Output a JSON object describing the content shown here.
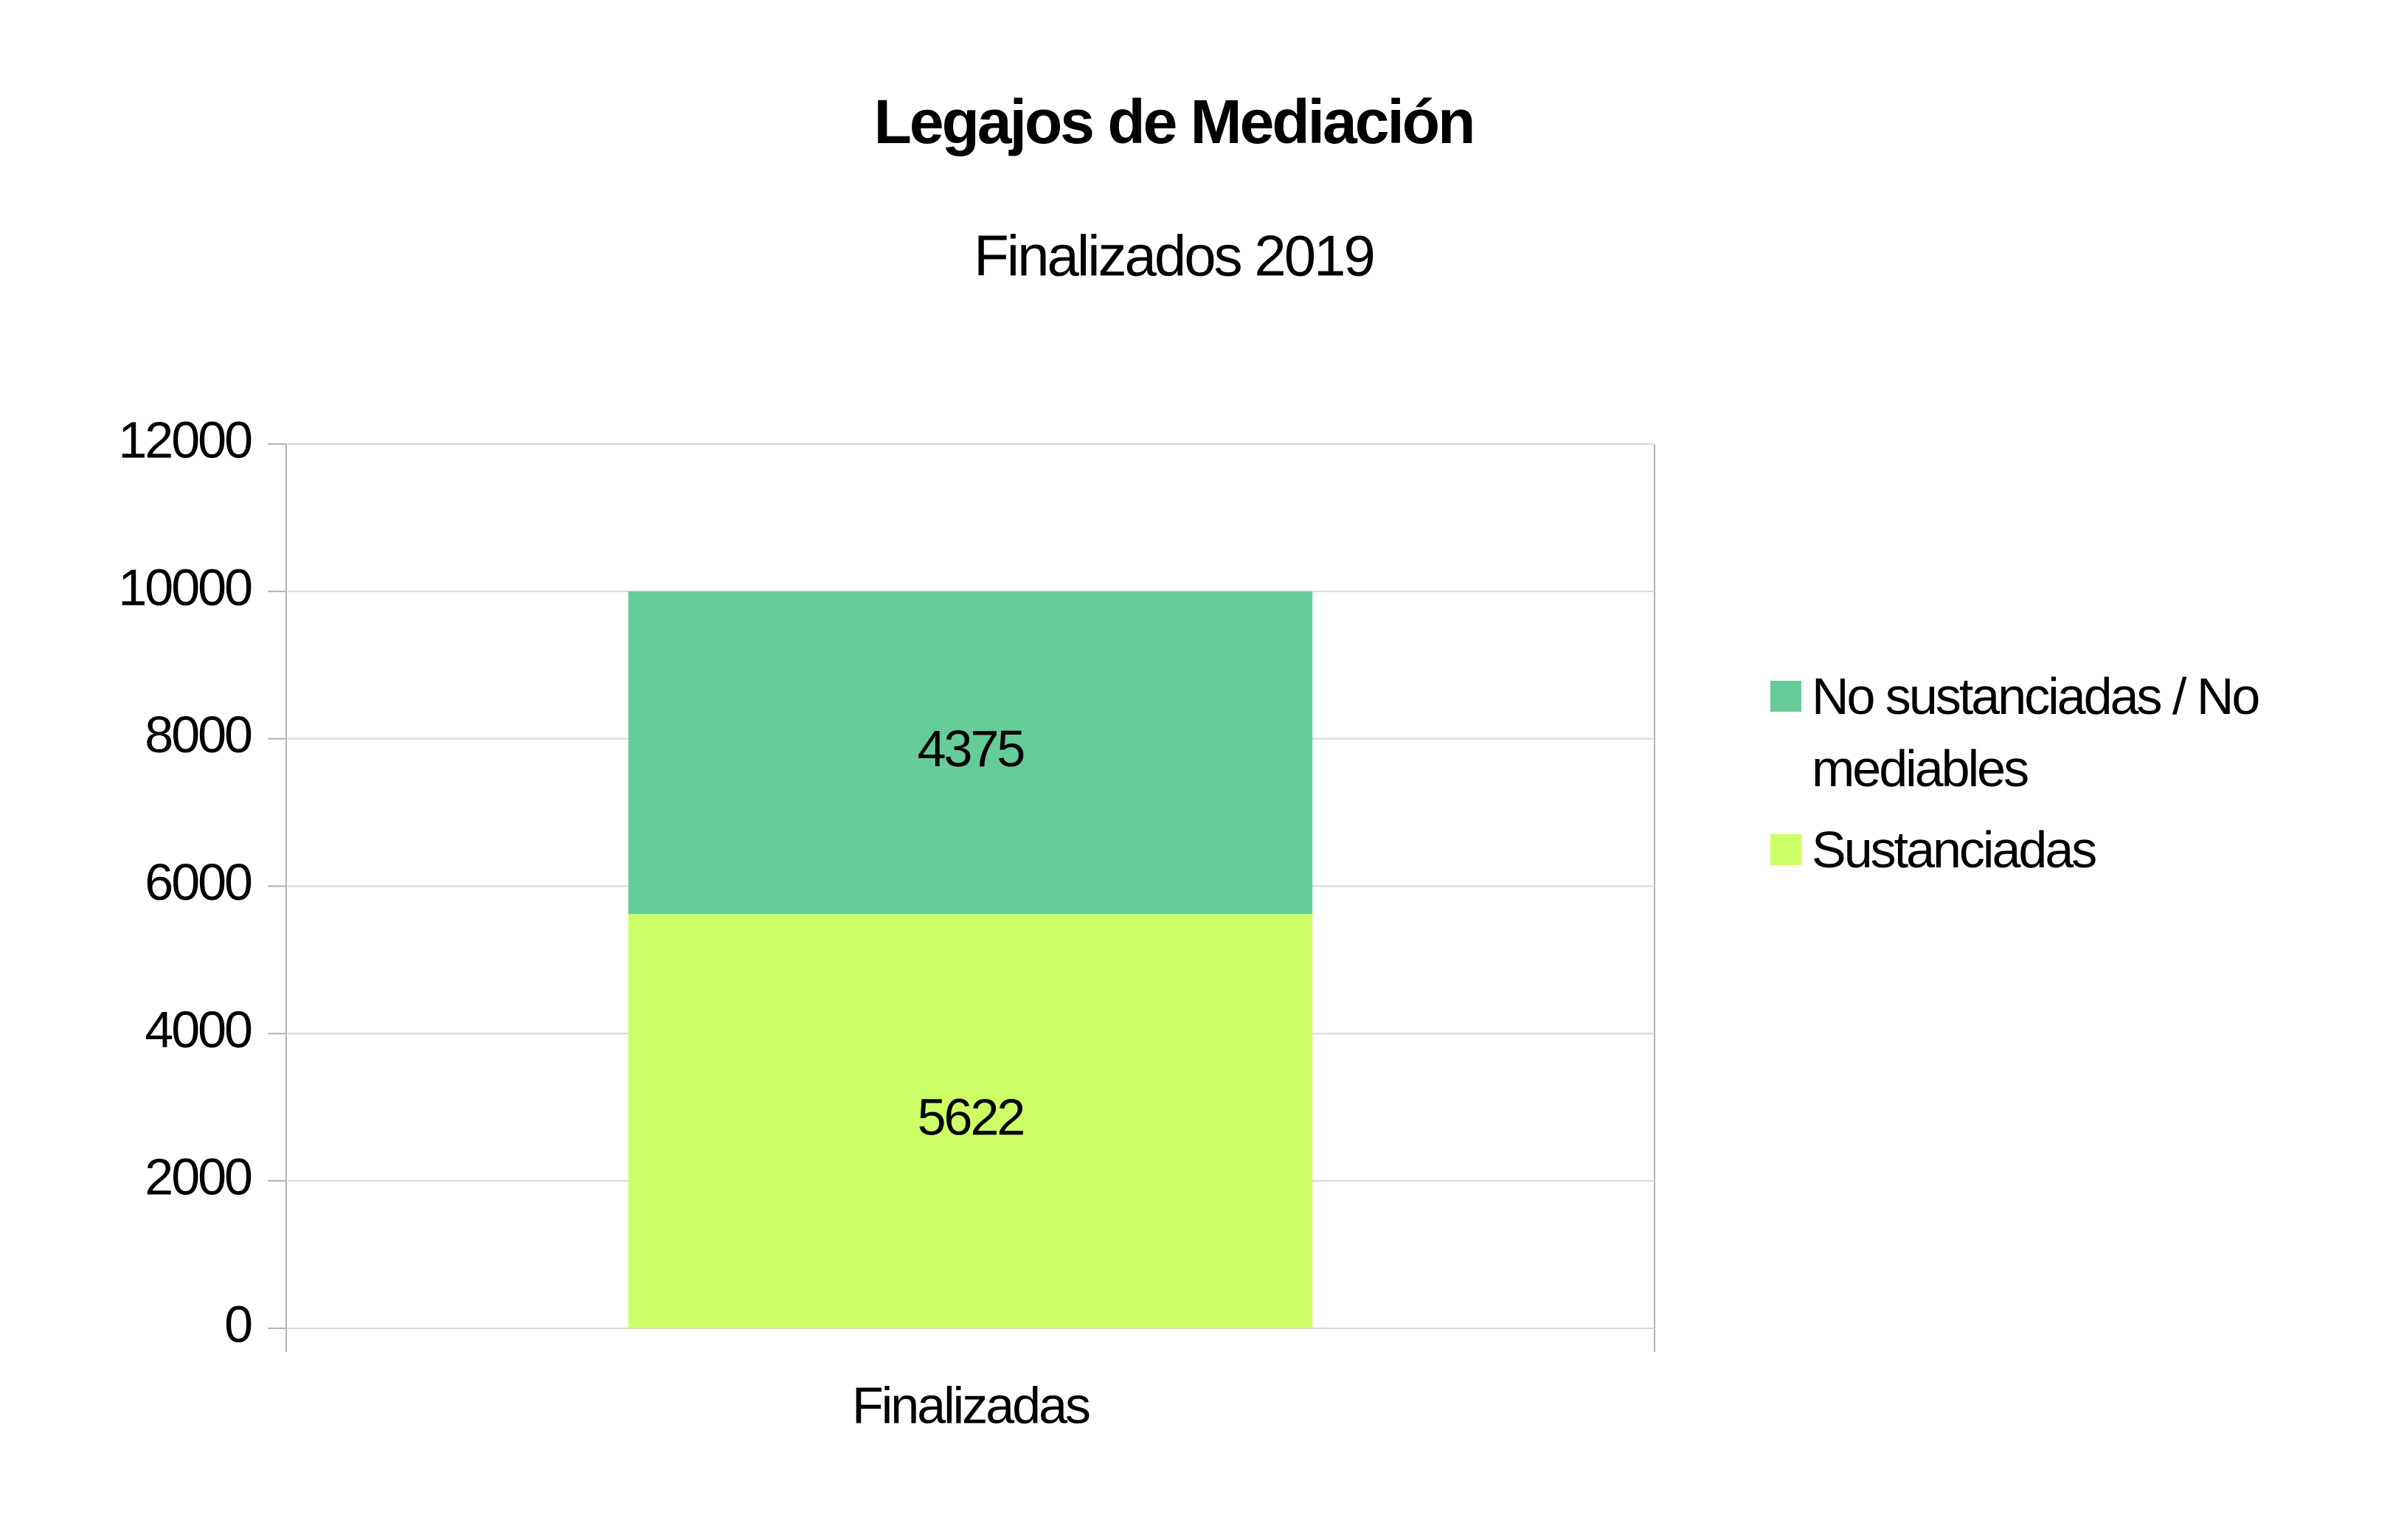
{
  "chart_data": {
    "type": "stacked_bar",
    "title": "Legajos de Mediación",
    "subtitle": "Finalizados 2019",
    "categories": [
      "Finalizadas"
    ],
    "series": [
      {
        "name": "Sustanciadas",
        "color": "#ccff66",
        "values": [
          5622
        ]
      },
      {
        "name": "No sustanciadas / No mediables",
        "color": "#66cc99",
        "values": [
          4375
        ]
      }
    ],
    "ylim": [
      0,
      12000
    ],
    "yticks": [
      0,
      2000,
      4000,
      6000,
      8000,
      10000,
      12000
    ],
    "grid": true,
    "legend": "right"
  }
}
